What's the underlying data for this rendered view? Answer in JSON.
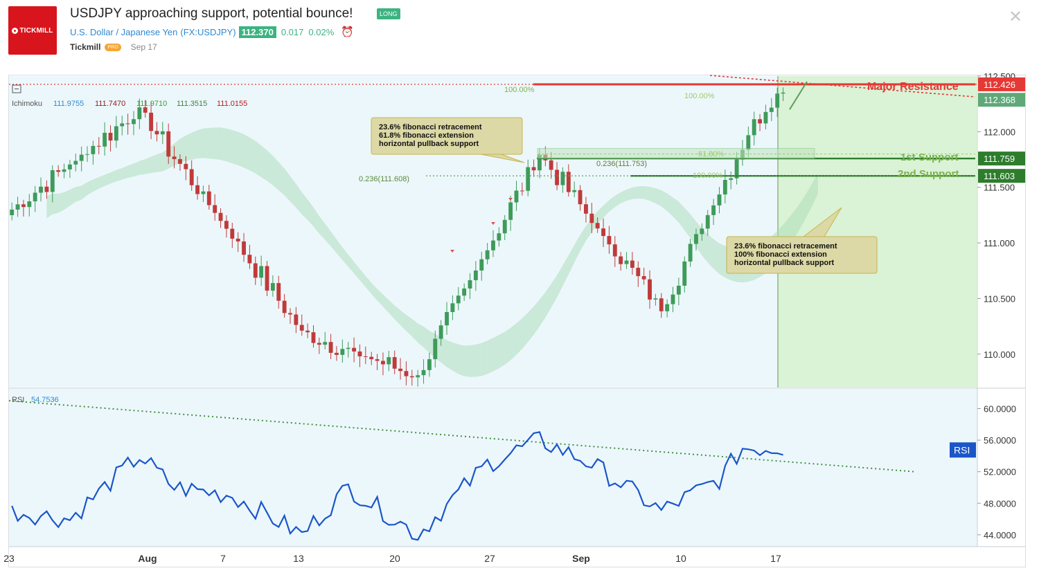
{
  "header": {
    "logo_text": "TICKMILL",
    "title": "USDJPY approaching support, potential bounce!",
    "badge": "LONG",
    "symbol_name": "U.S. Dollar / Japanese Yen",
    "symbol_code": "(FX:USDJPY)",
    "last_price": "112.370",
    "change": "0.017",
    "change_pct": "0.02%",
    "author": "Tickmill",
    "author_badge": "PRO",
    "date": "Sep 17",
    "icons": [
      "alarm-clock-icon",
      "close-icon"
    ]
  },
  "colors": {
    "up": "#3e9b5a",
    "down": "#c03a3a",
    "resistance": "#e53935",
    "support": "#2d7d2d",
    "rsi": "#1a56c8",
    "panel_bg": "#ecf7fb",
    "highlight_zone": "#d6f0cc"
  },
  "chart_data": [
    {
      "type": "candlestick",
      "pair": "USDJPY",
      "x_ticks": [
        "23",
        "Aug",
        "7",
        "13",
        "20",
        "27",
        "Sep",
        "10",
        "17"
      ],
      "y_ticks": [
        "112.500",
        "112.000",
        "111.500",
        "111.000",
        "110.500",
        "110.000"
      ],
      "ylim": [
        109.7,
        112.5
      ],
      "ichimoku": {
        "label": "Ichimoku",
        "values": [
          "111.9755",
          "111.7470",
          "111.9710",
          "111.3515",
          "111.0155"
        ]
      },
      "key_points": [
        {
          "date": "Jul 23",
          "close": 111.3
        },
        {
          "date": "Jul 31",
          "close": 112.2
        },
        {
          "date": "Aug 13",
          "close": 110.2
        },
        {
          "date": "Aug 21",
          "close": 109.8
        },
        {
          "date": "Aug 30",
          "close": 111.8
        },
        {
          "date": "Sep 7",
          "close": 110.4
        },
        {
          "date": "Sep 14",
          "close": 112.1
        },
        {
          "date": "Sep 17",
          "close": 112.37
        }
      ],
      "levels": [
        {
          "name": "Major Resistance",
          "price": 112.426,
          "label_tag": "112.426"
        },
        {
          "name": "1st Support",
          "price": 111.759,
          "label_tag": "111.759"
        },
        {
          "name": "2nd Support",
          "price": 111.603,
          "label_tag": "111.603"
        }
      ],
      "current_price_tag": "112.368",
      "fib_labels": [
        "100.00%",
        "100.00%",
        "61.80%",
        "0.236(111.753)",
        "0.236(111.608)",
        "100.00%"
      ],
      "annotations": [
        "23.6% fibonacci retracement\n61.8% fibonacci extension\nhorizontal pullback support",
        "23.6% fibonacci retracement\n100% fibonacci extension\nhorizontal pullback support"
      ]
    },
    {
      "type": "line",
      "name": "RSI",
      "current_value": "54.7536",
      "label_tag": "RSI",
      "y_ticks": [
        "60.0000",
        "56.0000",
        "52.0000",
        "48.0000",
        "44.0000"
      ],
      "ylim": [
        42.5,
        62.5
      ],
      "x": [
        "Jul 23",
        "Jul 27",
        "Jul 31",
        "Aug 3",
        "Aug 8",
        "Aug 13",
        "Aug 16",
        "Aug 21",
        "Aug 27",
        "Aug 30",
        "Sep 3",
        "Sep 7",
        "Sep 12",
        "Sep 14",
        "Sep 17"
      ],
      "values": [
        47,
        46,
        54,
        50,
        49,
        44,
        50,
        44,
        53,
        56,
        53,
        47,
        51,
        55,
        55
      ],
      "trendline": {
        "from": 61,
        "to": 52
      }
    }
  ]
}
